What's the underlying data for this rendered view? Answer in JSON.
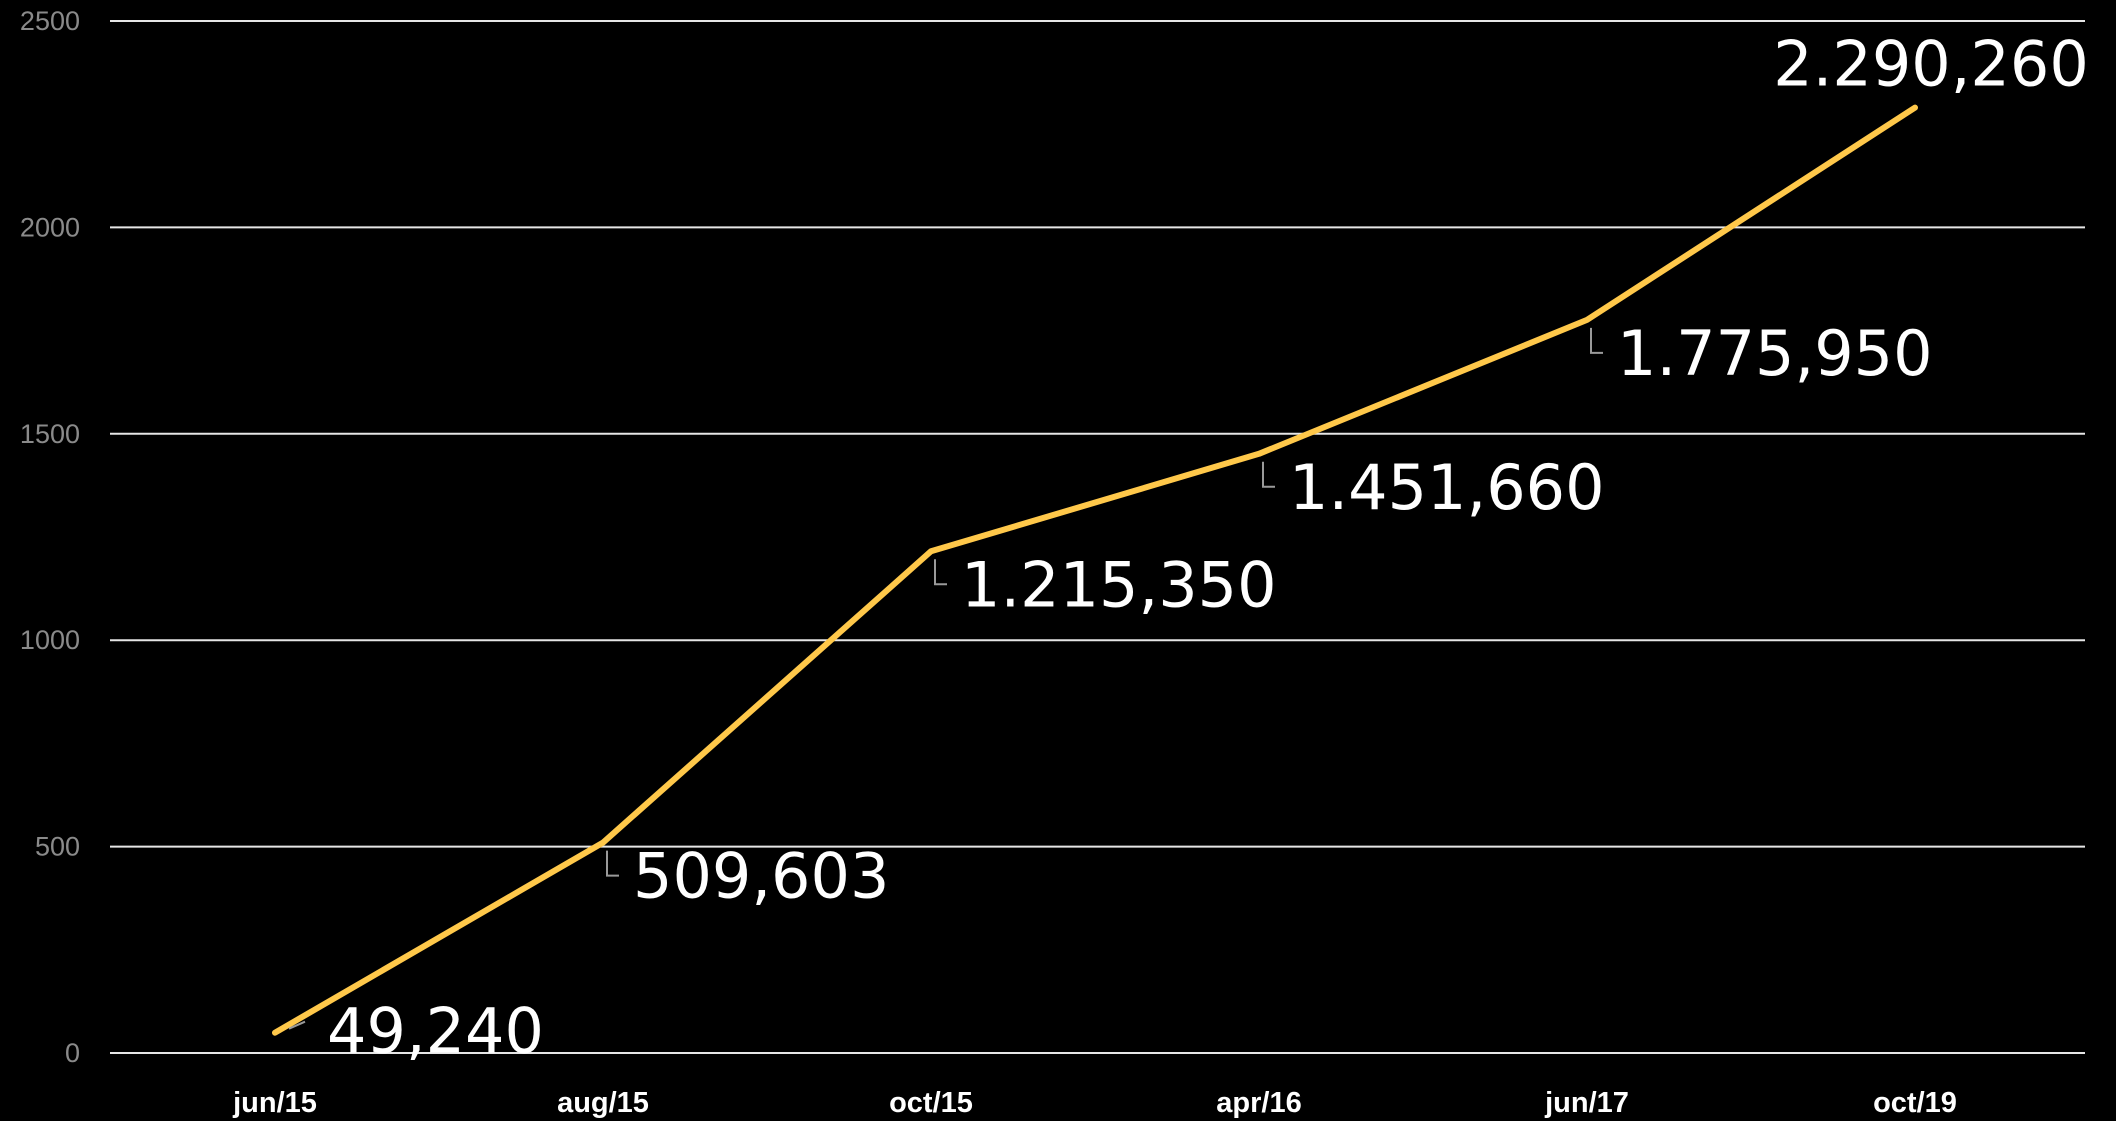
{
  "chart_data": {
    "type": "line",
    "categories": [
      "jun/15",
      "aug/15",
      "oct/15",
      "apr/16",
      "jun/17",
      "oct/19"
    ],
    "series": [
      {
        "values": [
          49.24,
          509.603,
          1215.35,
          1451.66,
          1775.95,
          2290.26
        ],
        "data_labels": [
          "49,240",
          "509,603",
          "1.215,350",
          "1.451,660",
          "1.775,950",
          "2.290,260"
        ],
        "color": "#ffc84a"
      }
    ],
    "y_ticks": [
      "0",
      "500",
      "1000",
      "1500",
      "2000",
      "2500"
    ],
    "ylim": [
      0,
      2500
    ],
    "grid": true,
    "background": "#000000",
    "legend": "none"
  }
}
